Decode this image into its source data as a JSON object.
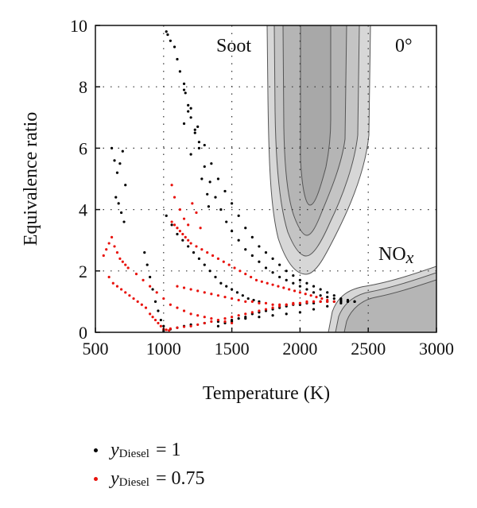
{
  "chart_data": {
    "type": "scatter",
    "title": "",
    "xlabel": "Temperature (K)",
    "ylabel": "Equivalence ratio",
    "xlim": [
      500,
      3000
    ],
    "ylim": [
      0,
      10
    ],
    "xticks": [
      500,
      1000,
      1500,
      2000,
      2500,
      3000
    ],
    "yticks": [
      0,
      2,
      4,
      6,
      8,
      10
    ],
    "x_tick_labels": [
      "500",
      "1000",
      "1500",
      "2000",
      "2500",
      "3000"
    ],
    "y_tick_labels": [
      "0",
      "2",
      "4",
      "6",
      "8",
      "10"
    ],
    "grid": true,
    "legend_position": "bottom",
    "annotations": [
      {
        "text": "Soot",
        "x": 1850,
        "y": 9.4
      },
      {
        "text": "0°",
        "x": 2780,
        "y": 9.4
      },
      {
        "text": "NO",
        "sub": "x",
        "x": 2630,
        "y": 2.4
      }
    ],
    "regions": {
      "soot_color": "#b5b5b5",
      "nox_color": "#b5b5b5"
    },
    "series": [
      {
        "name": "yDiesel = 1",
        "color": "#000000",
        "legend_var": "y",
        "legend_sub": "Diesel",
        "legend_value": "= 1",
        "x": [
          1020,
          1030,
          1050,
          1080,
          1100,
          1120,
          1150,
          1160,
          1180,
          1200,
          1230,
          1260,
          1300,
          1340,
          1380,
          1420,
          1460,
          1500,
          1550,
          1600,
          1650,
          1700,
          1750,
          1800,
          1850,
          1900,
          1950,
          2000,
          2050,
          2100,
          2150,
          2200,
          2250,
          2300,
          2350,
          2400,
          1150,
          1200,
          1250,
          1300,
          1350,
          1400,
          1450,
          1500,
          1550,
          1600,
          1650,
          1700,
          1750,
          1800,
          1850,
          1900,
          1950,
          2000,
          2050,
          2100,
          2150,
          2200,
          2250,
          2300,
          2350,
          2400,
          1000,
          1050,
          1100,
          1150,
          1200,
          1300,
          1400,
          1500,
          1600,
          1700,
          1800,
          1900,
          2000,
          2100,
          2200,
          2300,
          2400,
          620,
          640,
          660,
          680,
          700,
          720,
          650,
          670,
          690,
          710,
          860,
          880,
          900,
          920,
          940,
          960,
          980,
          1000,
          1020,
          1060,
          1100,
          1140,
          1180,
          1220,
          1260,
          1300,
          1340,
          1380,
          1420,
          1460,
          1500,
          1540,
          1580,
          1620,
          1660,
          1700,
          1400,
          1450,
          1500,
          1550,
          1600,
          1650,
          1700,
          1750,
          1800,
          1850,
          1900,
          1950,
          2000,
          2050,
          2100,
          2150,
          2200,
          2250,
          2300,
          2350,
          1230,
          1260,
          1200,
          1280,
          1320,
          1150,
          1180,
          1330
        ],
        "y": [
          9.8,
          9.7,
          9.5,
          9.3,
          8.9,
          8.5,
          8.1,
          7.8,
          7.4,
          7.0,
          6.6,
          6.0,
          5.4,
          4.9,
          4.4,
          4.0,
          3.6,
          3.3,
          3.0,
          2.7,
          2.5,
          2.3,
          2.1,
          1.95,
          1.8,
          1.7,
          1.6,
          1.5,
          1.4,
          1.3,
          1.2,
          1.15,
          1.1,
          1.05,
          1.0,
          1.0,
          7.9,
          7.3,
          6.7,
          6.1,
          5.5,
          5.0,
          4.6,
          4.2,
          3.8,
          3.4,
          3.1,
          2.8,
          2.6,
          2.4,
          2.2,
          2.0,
          1.85,
          1.7,
          1.6,
          1.5,
          1.4,
          1.3,
          1.2,
          1.1,
          1.05,
          1.0,
          0.05,
          0.1,
          0.15,
          0.2,
          0.25,
          0.3,
          0.35,
          0.4,
          0.45,
          0.5,
          0.55,
          0.6,
          0.65,
          0.75,
          0.85,
          0.95,
          1.0,
          6.0,
          5.6,
          5.2,
          5.5,
          5.9,
          4.8,
          4.4,
          4.2,
          3.9,
          3.6,
          2.6,
          2.2,
          1.8,
          1.4,
          1.0,
          0.7,
          0.4,
          0.2,
          3.8,
          3.5,
          3.2,
          3.0,
          2.8,
          2.6,
          2.4,
          2.2,
          2.0,
          1.8,
          1.6,
          1.5,
          1.4,
          1.3,
          1.2,
          1.1,
          1.05,
          1.0,
          0.2,
          0.3,
          0.35,
          0.45,
          0.5,
          0.6,
          0.65,
          0.7,
          0.75,
          0.8,
          0.85,
          0.9,
          0.9,
          0.95,
          0.95,
          1.0,
          1.0,
          1.0,
          1.0,
          1.0,
          6.5,
          6.2,
          5.8,
          5.0,
          4.5,
          6.8,
          7.2,
          4.1
        ]
      },
      {
        "name": "yDiesel = 0.75",
        "color": "#e8120c",
        "legend_var": "y",
        "legend_sub": "Diesel",
        "legend_value": "= 0.75",
        "x": [
          560,
          580,
          600,
          620,
          640,
          660,
          680,
          700,
          720,
          740,
          600,
          630,
          660,
          690,
          720,
          750,
          780,
          810,
          840,
          870,
          900,
          920,
          940,
          960,
          980,
          1000,
          1020,
          1040,
          1060,
          1080,
          1100,
          1120,
          1140,
          1160,
          1180,
          1200,
          1240,
          1280,
          1320,
          1360,
          1400,
          1440,
          1480,
          1520,
          1560,
          1600,
          1640,
          1680,
          1720,
          1760,
          1800,
          1840,
          1880,
          1920,
          1960,
          2000,
          2040,
          2080,
          2120,
          2160,
          2200,
          1000,
          1050,
          1100,
          1150,
          1200,
          1250,
          1300,
          1350,
          1400,
          1450,
          1500,
          1550,
          1600,
          1650,
          1700,
          1750,
          1800,
          1850,
          1900,
          1950,
          2000,
          2050,
          2100,
          2150,
          2200,
          2250,
          1100,
          1150,
          1200,
          1250,
          1300,
          1350,
          1400,
          1450,
          1500,
          1550,
          1600,
          1650,
          1700,
          1750,
          1800,
          1850,
          1900,
          1950,
          2000,
          2050,
          2100,
          2150,
          800,
          850,
          900,
          950,
          1000,
          1050,
          1100,
          1150,
          1200,
          1250,
          1300,
          1350,
          1400,
          1450,
          1500,
          1060,
          1080,
          1120,
          1150,
          1180,
          1210,
          1240,
          1270
        ],
        "y": [
          2.5,
          2.7,
          2.9,
          3.1,
          2.8,
          2.6,
          2.4,
          2.3,
          2.2,
          2.1,
          1.8,
          1.6,
          1.5,
          1.4,
          1.3,
          1.2,
          1.1,
          1.0,
          0.9,
          0.8,
          0.6,
          0.5,
          0.4,
          0.3,
          0.2,
          0.1,
          0.08,
          0.06,
          3.6,
          3.5,
          3.4,
          3.3,
          3.2,
          3.1,
          3.0,
          2.9,
          2.8,
          2.7,
          2.6,
          2.5,
          2.4,
          2.3,
          2.2,
          2.1,
          2.0,
          1.9,
          1.8,
          1.7,
          1.65,
          1.6,
          1.55,
          1.5,
          1.45,
          1.4,
          1.35,
          1.3,
          1.25,
          1.2,
          1.15,
          1.1,
          1.05,
          0.1,
          0.12,
          0.15,
          0.18,
          0.2,
          0.25,
          0.3,
          0.35,
          0.4,
          0.45,
          0.5,
          0.55,
          0.6,
          0.65,
          0.7,
          0.75,
          0.8,
          0.85,
          0.9,
          0.92,
          0.95,
          0.97,
          1.0,
          1.0,
          1.0,
          1.0,
          1.5,
          1.45,
          1.4,
          1.35,
          1.3,
          1.25,
          1.2,
          1.15,
          1.1,
          1.05,
          1.0,
          1.0,
          0.95,
          0.95,
          0.9,
          0.9,
          0.9,
          0.95,
          0.95,
          1.0,
          1.0,
          1.0,
          1.9,
          1.7,
          1.5,
          1.3,
          1.1,
          0.9,
          0.8,
          0.7,
          0.6,
          0.55,
          0.5,
          0.45,
          0.4,
          0.35,
          0.3,
          4.8,
          4.4,
          4.0,
          3.7,
          3.5,
          4.2,
          3.9,
          3.4
        ]
      }
    ]
  }
}
